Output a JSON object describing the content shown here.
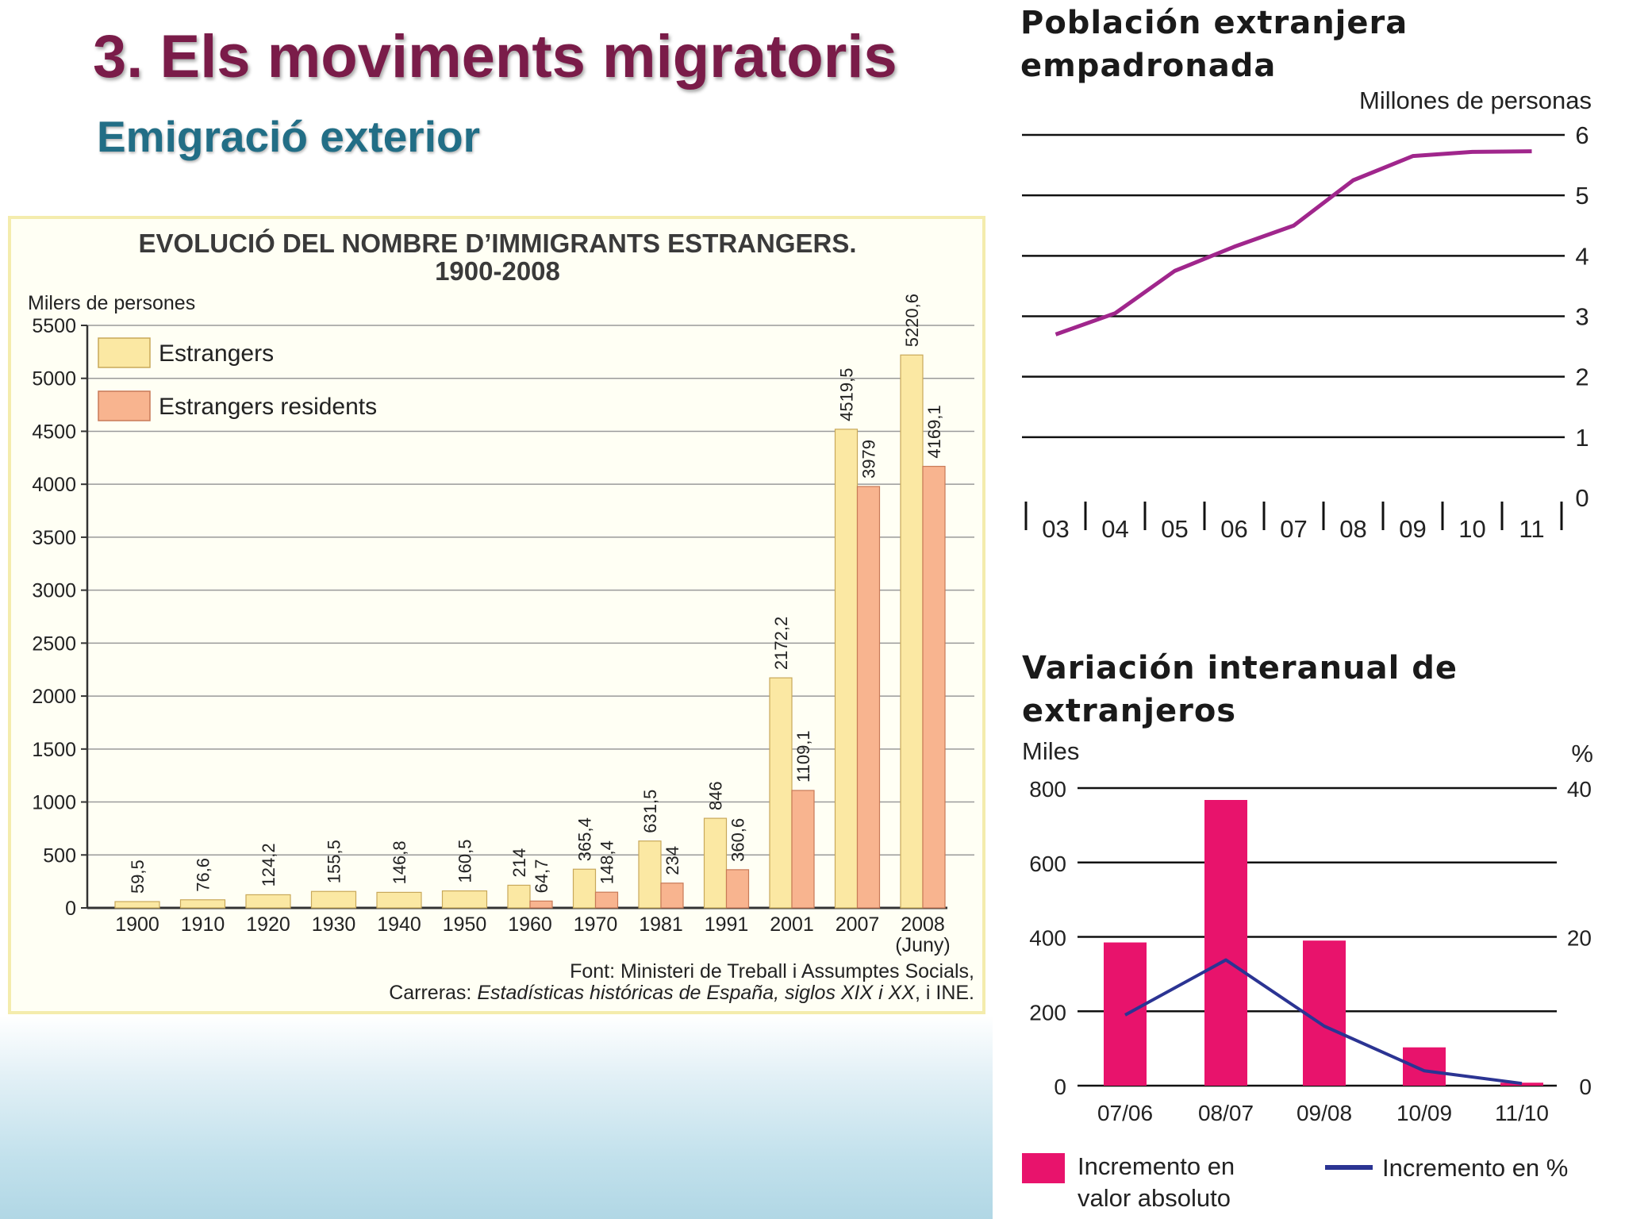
{
  "slide": {
    "title": "3. Els moviments migratoris",
    "subtitle": "Emigració exterior"
  },
  "colors": {
    "title": "#7a1c49",
    "subtitle": "#226e86",
    "estrangers": "#fbe8a3",
    "residents": "#f8b48f",
    "line_purple": "#a0268c",
    "bar_pink": "#e8136c",
    "line_blue": "#2b3493"
  },
  "chart_data": [
    {
      "type": "bar",
      "title": "EVOLUCIÓ DEL NOMBRE D’IMMIGRANTS ESTRANGERS.",
      "subtitle": "1900-2008",
      "ylabel": "Milers de persones",
      "xlabel": "",
      "ylim": [
        0,
        5500
      ],
      "yticks": [
        "0",
        "500",
        "1000",
        "1500",
        "2000",
        "2500",
        "3000",
        "3500",
        "4000",
        "4500",
        "5000",
        "5500"
      ],
      "categories": [
        "1900",
        "1910",
        "1920",
        "1930",
        "1940",
        "1950",
        "1960",
        "1970",
        "1981",
        "1991",
        "2001",
        "2007",
        "2008"
      ],
      "category_note": "(Juny)",
      "series": [
        {
          "name": "Estrangers",
          "values": [
            59.5,
            76.6,
            124.2,
            155.5,
            146.8,
            160.5,
            214,
            365.4,
            631.5,
            846,
            2172.2,
            4519.5,
            5220.6
          ],
          "labels": [
            "59,5",
            "76,6",
            "124,2",
            "155,5",
            "146,8",
            "160,5",
            "214",
            "365,4",
            "631,5",
            "846",
            "2172,2",
            "4519,5",
            "5220,6"
          ]
        },
        {
          "name": "Estrangers residents",
          "values": [
            null,
            null,
            null,
            null,
            null,
            null,
            64.7,
            148.4,
            234,
            360.6,
            1109.1,
            3979,
            4169.1
          ],
          "labels": [
            "",
            "",
            "",
            "",
            "",
            "",
            "64,7",
            "148,4",
            "234",
            "360,6",
            "1109,1",
            "3979",
            "4169,1"
          ]
        }
      ],
      "source_line1": "Font: Ministeri de Treball i Assumptes Socials,",
      "source_line2_prefix": "Carreras: ",
      "source_line2_italic": "Estadísticas históricas de España, siglos XIX i XX",
      "source_line2_suffix": ", i INE."
    },
    {
      "type": "line",
      "title_line1": "Población extranjera",
      "title_line2": "empadronada",
      "ylabel": "Millones de personas",
      "ylim": [
        0,
        6
      ],
      "yticks": [
        "0",
        "1",
        "2",
        "3",
        "4",
        "5",
        "6"
      ],
      "categories": [
        "03",
        "04",
        "05",
        "06",
        "07",
        "08",
        "09",
        "10",
        "11"
      ],
      "values": [
        2.7,
        3.05,
        3.75,
        4.15,
        4.5,
        5.25,
        5.65,
        5.72,
        5.73
      ]
    },
    {
      "type": "bar+line",
      "title_line1": "Variación interanual de",
      "title_line2": "extranjeros",
      "ylabel_left": "Miles",
      "ylabel_right": "%",
      "ylim_left": [
        0,
        800
      ],
      "ylim_right": [
        0,
        40
      ],
      "yticks_left": [
        "0",
        "200",
        "400",
        "600",
        "800"
      ],
      "yticks_right": [
        "0",
        "20",
        "40"
      ],
      "categories": [
        "07/06",
        "08/07",
        "09/08",
        "10/09",
        "11/10"
      ],
      "series": [
        {
          "name": "Incremento en valor absoluto",
          "name_line1": "Incremento en",
          "name_line2": "valor absoluto",
          "type": "bar",
          "values": [
            385,
            768,
            390,
            103,
            8
          ]
        },
        {
          "name": "Incremento en %",
          "type": "line",
          "values": [
            9.5,
            16.9,
            8.0,
            2.0,
            0.3
          ]
        }
      ]
    }
  ]
}
